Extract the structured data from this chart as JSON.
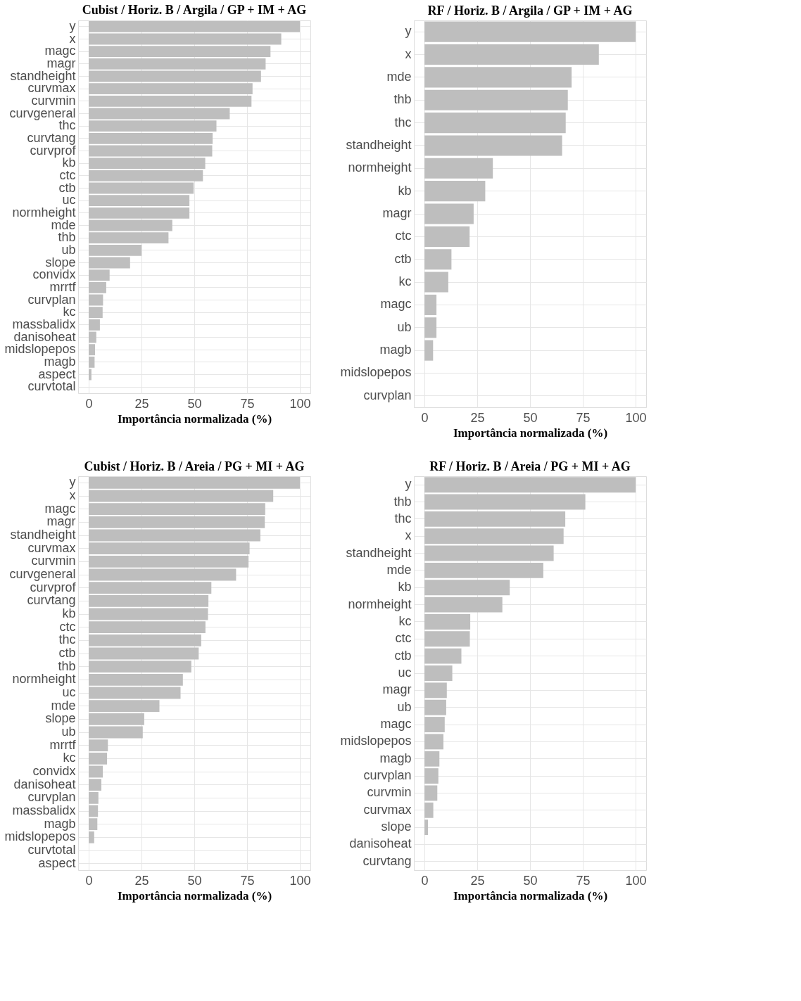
{
  "chart_data": [
    {
      "type": "bar",
      "orientation": "horizontal",
      "title": "Cubist / Horiz. B / Argila / GP + IM + AG",
      "xlabel": "Importância normalizada (%)",
      "categories": [
        "y",
        "x",
        "magc",
        "magr",
        "standheight",
        "curvmax",
        "curvmin",
        "curvgeneral",
        "thc",
        "curvtang",
        "curvprof",
        "kb",
        "ctc",
        "ctb",
        "uc",
        "normheight",
        "mde",
        "thb",
        "ub",
        "slope",
        "convidx",
        "mrrtf",
        "curvplan",
        "kc",
        "massbalidx",
        "danisoheat",
        "midslopepos",
        "magb",
        "aspect",
        "curvtotal"
      ],
      "values": [
        100,
        91.2,
        86.1,
        83.8,
        81.6,
        77.6,
        77.1,
        66.8,
        60.5,
        58.7,
        58.5,
        55.2,
        54.1,
        49.7,
        47.7,
        47.7,
        39.6,
        37.8,
        25.0,
        19.6,
        9.9,
        8.3,
        6.8,
        6.6,
        5.3,
        3.6,
        3.0,
        2.8,
        1.3,
        0
      ],
      "color": "#bebebe",
      "xlim": [
        -5,
        105
      ],
      "xticks": [
        0,
        25,
        50,
        75,
        100
      ],
      "grid": true
    },
    {
      "type": "bar",
      "orientation": "horizontal",
      "title": "RF / Horiz. B / Argila / GP + IM + AG",
      "xlabel": "Importância normalizada (%)",
      "categories": [
        "y",
        "x",
        "mde",
        "thb",
        "thc",
        "standheight",
        "normheight",
        "kb",
        "magr",
        "ctc",
        "ctb",
        "kc",
        "magc",
        "ub",
        "magb",
        "midslopepos",
        "curvplan"
      ],
      "values": [
        100,
        82.6,
        69.7,
        67.9,
        66.9,
        65.2,
        32.4,
        28.8,
        23.3,
        21.4,
        12.8,
        11.3,
        5.7,
        5.7,
        4.1,
        0,
        0
      ],
      "color": "#bebebe",
      "xlim": [
        -5,
        105
      ],
      "xticks": [
        0,
        25,
        50,
        75,
        100
      ],
      "grid": true
    },
    {
      "type": "bar",
      "orientation": "horizontal",
      "title": "Cubist / Horiz. B / Areia / PG + MI + AG",
      "xlabel": "Importância normalizada (%)",
      "categories": [
        "y",
        "x",
        "magc",
        "magr",
        "standheight",
        "curvmax",
        "curvmin",
        "curvgeneral",
        "curvprof",
        "curvtang",
        "kb",
        "ctc",
        "thc",
        "ctb",
        "thb",
        "normheight",
        "uc",
        "mde",
        "slope",
        "ub",
        "mrrtf",
        "kc",
        "convidx",
        "danisoheat",
        "curvplan",
        "massbalidx",
        "magb",
        "midslopepos",
        "curvtotal",
        "aspect"
      ],
      "values": [
        100,
        87.4,
        83.6,
        83.4,
        81.3,
        76.2,
        75.7,
        69.8,
        58.1,
        56.7,
        56.5,
        55.3,
        53.3,
        52.1,
        48.6,
        44.6,
        43.5,
        33.5,
        26.3,
        25.6,
        9.1,
        8.7,
        6.7,
        6.0,
        4.6,
        4.4,
        4.1,
        2.6,
        null,
        0
      ],
      "color": "#bebebe",
      "xlim": [
        -5,
        105
      ],
      "xticks": [
        0,
        25,
        50,
        75,
        100
      ],
      "grid": true
    },
    {
      "type": "bar",
      "orientation": "horizontal",
      "title": "RF / Horiz. B / Areia / PG + MI + AG",
      "xlabel": "Importância normalizada (%)",
      "categories": [
        "y",
        "thb",
        "thc",
        "x",
        "standheight",
        "mde",
        "kb",
        "normheight",
        "kc",
        "ctc",
        "ctb",
        "uc",
        "magr",
        "ub",
        "magc",
        "midslopepos",
        "magb",
        "curvplan",
        "curvmin",
        "curvmax",
        "slope",
        "danisoheat",
        "curvtang"
      ],
      "values": [
        100,
        76.2,
        66.7,
        65.9,
        61.2,
        56.3,
        40.4,
        36.9,
        21.7,
        21.5,
        17.5,
        13.2,
        10.6,
        10.3,
        9.6,
        9.0,
        7.1,
        6.6,
        6.1,
        4.2,
        1.7,
        0,
        0
      ],
      "color": "#bebebe",
      "xlim": [
        -5,
        105
      ],
      "xticks": [
        0,
        25,
        50,
        75,
        100
      ],
      "grid": true
    }
  ]
}
